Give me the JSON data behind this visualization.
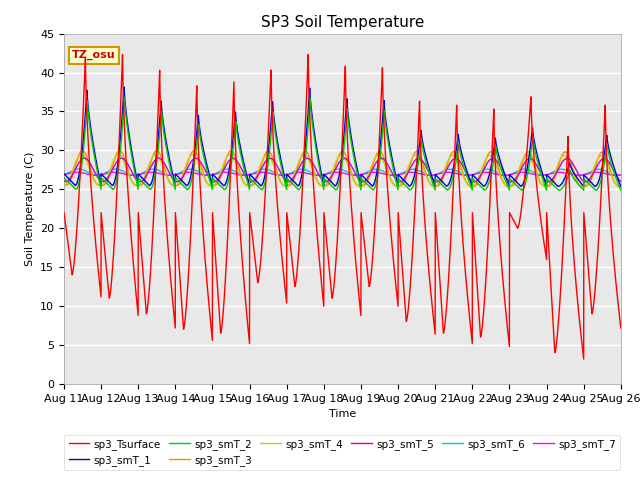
{
  "title": "SP3 Soil Temperature",
  "ylabel": "Soil Temperature (C)",
  "xlabel": "Time",
  "annotation": "TZ_osu",
  "ylim": [
    0,
    45
  ],
  "tick_labels": [
    "Aug 11",
    "Aug 12",
    "Aug 13",
    "Aug 14",
    "Aug 15",
    "Aug 16",
    "Aug 17",
    "Aug 18",
    "Aug 19",
    "Aug 20",
    "Aug 21",
    "Aug 22",
    "Aug 23",
    "Aug 24",
    "Aug 25",
    "Aug 26"
  ],
  "plot_bg_light": "#e8e8e8",
  "plot_bg_dark": "#d0d0d0",
  "legend_entries": [
    "sp3_Tsurface",
    "sp3_smT_1",
    "sp3_smT_2",
    "sp3_smT_3",
    "sp3_smT_4",
    "sp3_smT_5",
    "sp3_smT_6",
    "sp3_smT_7"
  ],
  "line_colors": [
    "#ff0000",
    "#0000dd",
    "#00cc00",
    "#ff8800",
    "#cccc00",
    "#cc00cc",
    "#00cccc",
    "#ff00ff"
  ],
  "surface_peaks": [
    42.0,
    42.5,
    40.5,
    38.5,
    39.0,
    40.5,
    42.5,
    41.0,
    40.8,
    36.5,
    36.0,
    35.5,
    37.0,
    32.0,
    36.0
  ],
  "surface_mins": [
    14.0,
    11.0,
    9.0,
    7.0,
    6.5,
    13.0,
    12.5,
    11.0,
    12.5,
    8.0,
    6.5,
    6.0,
    20.0,
    4.0,
    9.0
  ],
  "title_fontsize": 11,
  "axis_fontsize": 8,
  "tick_fontsize": 8
}
